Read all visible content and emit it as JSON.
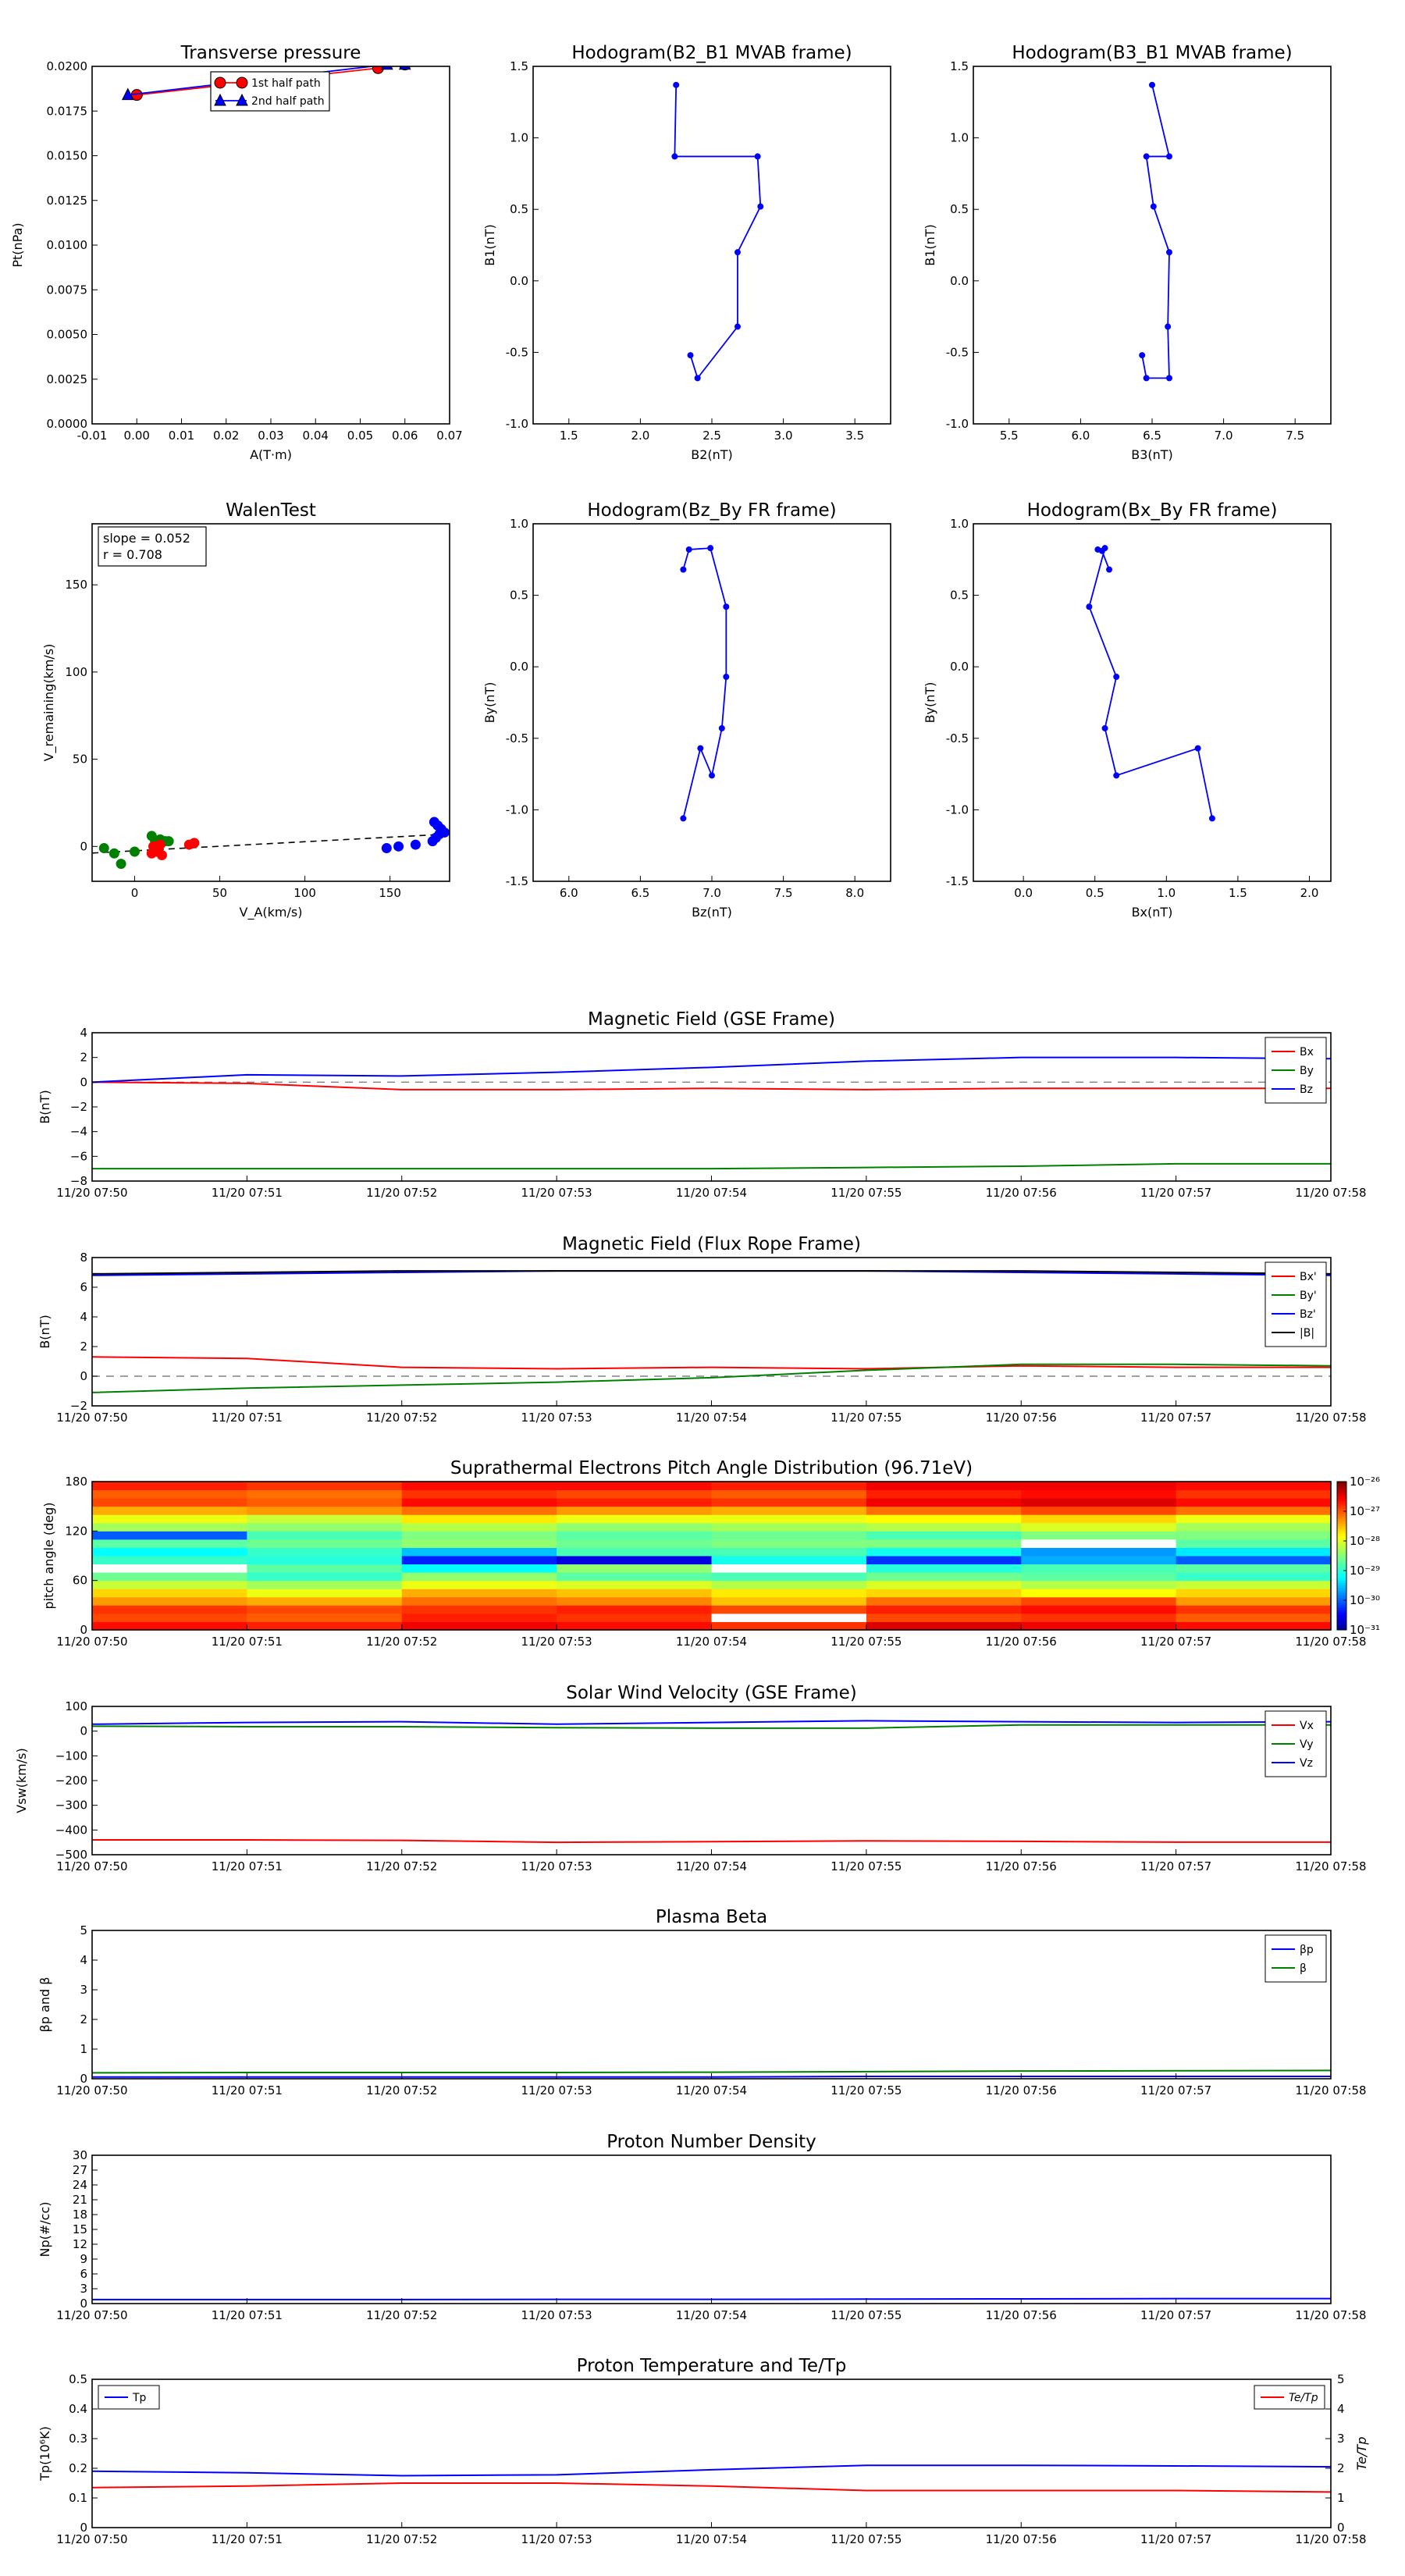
{
  "chart_data": [
    {
      "id": "tp",
      "type": "line",
      "title": "Transverse pressure",
      "xlabel": "A(T·m)",
      "ylabel": "Pt(nPa)",
      "xlim": [
        -0.01,
        0.07
      ],
      "ylim": [
        0,
        0.02
      ],
      "xticks": [
        "-0.01",
        "0.00",
        "0.01",
        "0.02",
        "0.03",
        "0.04",
        "0.05",
        "0.06",
        "0.07"
      ],
      "yticks": [
        "0.0000",
        "0.0025",
        "0.0050",
        "0.0075",
        "0.0100",
        "0.0125",
        "0.0150",
        "0.0175",
        "0.0200"
      ],
      "legend": "top-center",
      "series": [
        {
          "name": "1st half path",
          "color": "#ff0000",
          "marker": "circle",
          "x": [
            0.0,
            0.054,
            0.06
          ],
          "y": [
            0.0184,
            0.0199,
            0.0201
          ]
        },
        {
          "name": "2nd half path",
          "color": "#0000ff",
          "marker": "triangle",
          "x": [
            -0.002,
            0.056,
            0.06
          ],
          "y": [
            0.0184,
            0.0201,
            0.0201
          ]
        }
      ]
    },
    {
      "id": "h1",
      "type": "line",
      "title": "Hodogram(B2_B1 MVAB frame)",
      "xlabel": "B2(nT)",
      "ylabel": "B1(nT)",
      "xlim": [
        1.25,
        3.75
      ],
      "ylim": [
        -1.0,
        1.5
      ],
      "xticks": [
        "1.5",
        "2.0",
        "2.5",
        "3.0",
        "3.5"
      ],
      "yticks": [
        "-1.0",
        "-0.5",
        "0.0",
        "0.5",
        "1.0",
        "1.5"
      ],
      "series": [
        {
          "color": "#0000ff",
          "marker": "dot",
          "x": [
            2.25,
            2.24,
            2.82,
            2.84,
            2.68,
            2.68,
            2.4,
            2.35
          ],
          "y": [
            1.37,
            0.87,
            0.87,
            0.52,
            0.2,
            -0.32,
            -0.68,
            -0.52
          ]
        }
      ]
    },
    {
      "id": "h2",
      "type": "line",
      "title": "Hodogram(B3_B1 MVAB frame)",
      "xlabel": "B3(nT)",
      "ylabel": "B1(nT)",
      "xlim": [
        5.25,
        7.75
      ],
      "ylim": [
        -1.0,
        1.5
      ],
      "xticks": [
        "5.5",
        "6.0",
        "6.5",
        "7.0",
        "7.5"
      ],
      "yticks": [
        "-1.0",
        "-0.5",
        "0.0",
        "0.5",
        "1.0",
        "1.5"
      ],
      "series": [
        {
          "color": "#0000ff",
          "marker": "dot",
          "x": [
            6.5,
            6.62,
            6.46,
            6.51,
            6.62,
            6.61,
            6.62,
            6.46,
            6.43
          ],
          "y": [
            1.37,
            0.87,
            0.87,
            0.52,
            0.2,
            -0.32,
            -0.68,
            -0.68,
            -0.52
          ]
        }
      ]
    },
    {
      "id": "walen",
      "type": "scatter",
      "title": "WalenTest",
      "xlabel": "V_A(km/s)",
      "ylabel": "V_remaining(km/s)",
      "xlim": [
        -25,
        185
      ],
      "ylim": [
        -20,
        185
      ],
      "xticks": [
        "0",
        "50",
        "100",
        "150"
      ],
      "xtickvals": [
        0,
        50,
        100,
        150
      ],
      "yticks": [
        "0",
        "50",
        "100",
        "150"
      ],
      "ytickvals": [
        0,
        50,
        100,
        150
      ],
      "annotation": [
        "slope = 0.052",
        "r = 0.708"
      ],
      "fit_line": {
        "slope": 0.052,
        "intercept": -2.5
      },
      "series": [
        {
          "color": "#008000",
          "x": [
            -28,
            -18,
            -12,
            -8,
            0,
            10,
            12,
            15,
            18,
            20
          ],
          "y": [
            -6,
            -1,
            -4,
            -10,
            -3,
            6,
            3,
            4,
            3,
            3
          ]
        },
        {
          "color": "#ff0000",
          "x": [
            10,
            12,
            14,
            13,
            11,
            15,
            16,
            32,
            35
          ],
          "y": [
            -4,
            -2,
            -1,
            -3,
            0,
            1,
            -5,
            1,
            2
          ]
        },
        {
          "color": "#0000ff",
          "x": [
            148,
            155,
            165,
            175,
            176,
            178,
            180,
            179,
            177,
            182
          ],
          "y": [
            -1,
            0,
            1,
            3,
            14,
            12,
            10,
            7,
            5,
            8
          ]
        }
      ]
    },
    {
      "id": "h3",
      "type": "line",
      "title": "Hodogram(Bz_By FR frame)",
      "xlabel": "Bz(nT)",
      "ylabel": "By(nT)",
      "xlim": [
        5.75,
        8.25
      ],
      "ylim": [
        -1.5,
        1.0
      ],
      "xticks": [
        "6.0",
        "6.5",
        "7.0",
        "7.5",
        "8.0"
      ],
      "yticks": [
        "-1.5",
        "-1.0",
        "-0.5",
        "0.0",
        "0.5",
        "1.0"
      ],
      "series": [
        {
          "color": "#0000ff",
          "marker": "dot",
          "x": [
            6.8,
            6.84,
            6.99,
            7.1,
            7.1,
            7.07,
            7.0,
            6.92,
            6.8
          ],
          "y": [
            0.68,
            0.82,
            0.83,
            0.42,
            -0.07,
            -0.43,
            -0.76,
            -0.57,
            -1.06
          ]
        }
      ]
    },
    {
      "id": "h4",
      "type": "line",
      "title": "Hodogram(Bx_By FR frame)",
      "xlabel": "Bx(nT)",
      "ylabel": "By(nT)",
      "xlim": [
        -0.35,
        2.15
      ],
      "ylim": [
        -1.5,
        1.0
      ],
      "xticks": [
        "0.0",
        "0.5",
        "1.0",
        "1.5",
        "2.0"
      ],
      "yticks": [
        "-1.5",
        "-1.0",
        "-0.5",
        "0.0",
        "0.5",
        "1.0"
      ],
      "series": [
        {
          "color": "#0000ff",
          "marker": "dot",
          "x": [
            0.6,
            0.55,
            0.52,
            0.57,
            0.46,
            0.65,
            0.57,
            0.65,
            1.22,
            1.32
          ],
          "y": [
            0.68,
            0.81,
            0.82,
            0.83,
            0.42,
            -0.07,
            -0.43,
            -0.76,
            -0.57,
            -1.06
          ]
        }
      ]
    },
    {
      "id": "ts1",
      "type": "line",
      "title": "Magnetic Field (GSE Frame)",
      "ylabel": "B(nT)",
      "ylim": [
        -8,
        4
      ],
      "yticks": [
        "−8",
        "−6",
        "−4",
        "−2",
        "0",
        "2",
        "4"
      ],
      "ytickvals": [
        -8,
        -6,
        -4,
        -2,
        0,
        2,
        4
      ],
      "zero_line": true,
      "legend": "top-right",
      "series": [
        {
          "name": "Bx",
          "color": "#ff0000",
          "values": [
            0.0,
            -0.1,
            -0.6,
            -0.6,
            -0.5,
            -0.6,
            -0.5,
            -0.5,
            -0.5
          ]
        },
        {
          "name": "By",
          "color": "#008000",
          "values": [
            -7.0,
            -7.0,
            -7.0,
            -7.0,
            -7.0,
            -6.9,
            -6.8,
            -6.6,
            -6.6
          ]
        },
        {
          "name": "Bz",
          "color": "#0000ff",
          "values": [
            0.0,
            0.6,
            0.5,
            0.8,
            1.2,
            1.7,
            2.0,
            2.0,
            1.9
          ]
        }
      ]
    },
    {
      "id": "ts2",
      "type": "line",
      "title": "Magnetic Field (Flux Rope Frame)",
      "ylabel": "B(nT)",
      "ylim": [
        -2,
        8
      ],
      "yticks": [
        "−2",
        "0",
        "2",
        "4",
        "6",
        "8"
      ],
      "ytickvals": [
        -2,
        0,
        2,
        4,
        6,
        8
      ],
      "zero_line": true,
      "legend": "top-right",
      "series": [
        {
          "name": "Bx'",
          "color": "#ff0000",
          "values": [
            1.3,
            1.2,
            0.6,
            0.5,
            0.6,
            0.5,
            0.7,
            0.6,
            0.6
          ]
        },
        {
          "name": "By'",
          "color": "#008000",
          "values": [
            -1.1,
            -0.8,
            -0.6,
            -0.4,
            -0.1,
            0.4,
            0.8,
            0.8,
            0.7
          ]
        },
        {
          "name": "Bz'",
          "color": "#0000ff",
          "values": [
            6.8,
            6.9,
            7.0,
            7.1,
            7.1,
            7.1,
            7.0,
            6.9,
            6.8
          ]
        },
        {
          "name": "|B|",
          "color": "#000000",
          "values": [
            6.9,
            7.0,
            7.1,
            7.1,
            7.1,
            7.1,
            7.1,
            7.0,
            6.9
          ]
        }
      ]
    },
    {
      "id": "ts3",
      "type": "heatmap",
      "title": "Suprathermal Electrons Pitch Angle Distribution (96.71eV)",
      "ylabel": "pitch angle (deg)",
      "ylim": [
        0,
        180
      ],
      "yticks": [
        "0",
        "60",
        "120",
        "180"
      ],
      "ytickvals": [
        0,
        60,
        120,
        180
      ],
      "colorbar": {
        "ticks": [
          "10⁻³¹",
          "10⁻³⁰",
          "10⁻²⁹",
          "10⁻²⁸",
          "10⁻²⁷",
          "10⁻²⁶"
        ],
        "min_exp": -31,
        "max_exp": -26
      },
      "note": "rows are pitch-angle bins from 0 to 180 deg; columns are minute bins; values are log10 of the colourbar quantity",
      "matrix": [
        [
          -26.6,
          -26.7,
          -26.5,
          -26.6,
          -26.8,
          -26.4,
          -26.5,
          -26.6
        ],
        [
          -26.9,
          -27.0,
          -26.7,
          -26.8,
          -31.5,
          -26.9,
          -26.8,
          -27.0
        ],
        [
          -26.8,
          -26.9,
          -26.8,
          -26.7,
          -26.9,
          -26.7,
          -26.6,
          -26.8
        ],
        [
          -27.3,
          -27.4,
          -27.1,
          -27.2,
          -27.5,
          -27.1,
          -26.9,
          -27.3
        ],
        [
          -27.6,
          -27.9,
          -27.4,
          -27.5,
          -27.7,
          -27.6,
          -27.8,
          -27.6
        ],
        [
          -28.1,
          -28.3,
          -27.9,
          -28.0,
          -28.2,
          -28.0,
          -28.2,
          -28.1
        ],
        [
          -28.6,
          -28.9,
          -28.4,
          -28.7,
          -28.8,
          -28.6,
          -28.7,
          -28.9
        ],
        [
          -31.5,
          -28.7,
          -29.2,
          -28.4,
          -31.5,
          -29.0,
          -28.8,
          -28.7
        ],
        [
          -28.9,
          -29.0,
          -30.3,
          -30.6,
          -29.1,
          -30.2,
          -29.6,
          -30.0
        ],
        [
          -29.2,
          -28.9,
          -29.5,
          -28.8,
          -28.8,
          -29.1,
          -29.7,
          -29.3
        ],
        [
          -28.7,
          -28.6,
          -28.4,
          -28.6,
          -28.5,
          -28.5,
          -31.5,
          -28.7
        ],
        [
          -30.0,
          -28.8,
          -28.5,
          -28.7,
          -28.6,
          -28.8,
          -28.5,
          -28.5
        ],
        [
          -28.3,
          -28.4,
          -28.2,
          -28.4,
          -28.3,
          -28.2,
          -28.0,
          -28.3
        ],
        [
          -27.9,
          -28.1,
          -27.7,
          -27.9,
          -27.9,
          -27.8,
          -27.6,
          -27.9
        ],
        [
          -27.4,
          -27.3,
          -27.1,
          -27.3,
          -27.4,
          -27.1,
          -26.9,
          -27.1
        ],
        [
          -26.9,
          -27.0,
          -26.6,
          -26.7,
          -26.8,
          -26.5,
          -26.4,
          -26.6
        ],
        [
          -27.0,
          -27.1,
          -26.8,
          -26.9,
          -27.0,
          -26.7,
          -26.6,
          -26.8
        ],
        [
          -26.7,
          -26.8,
          -26.6,
          -26.6,
          -26.7,
          -26.5,
          -26.5,
          -26.6
        ]
      ]
    },
    {
      "id": "ts4",
      "type": "line",
      "title": "Solar Wind Velocity (GSE Frame)",
      "ylabel": "Vsw(km/s)",
      "ylim": [
        -500,
        100
      ],
      "yticks": [
        "−500",
        "−400",
        "−300",
        "−200",
        "−100",
        "0",
        "100"
      ],
      "ytickvals": [
        -500,
        -400,
        -300,
        -200,
        -100,
        0,
        100
      ],
      "legend": "top-right",
      "series": [
        {
          "name": "Vx",
          "color": "#ff0000",
          "values": [
            -440,
            -440,
            -442,
            -450,
            -447,
            -444,
            -446,
            -449,
            -449
          ]
        },
        {
          "name": "Vy",
          "color": "#008000",
          "values": [
            20,
            18,
            18,
            14,
            12,
            12,
            25,
            25,
            25
          ]
        },
        {
          "name": "Vz",
          "color": "#0000ff",
          "values": [
            28,
            35,
            38,
            28,
            35,
            42,
            38,
            35,
            38
          ]
        }
      ]
    },
    {
      "id": "ts5",
      "type": "line",
      "title": "Plasma Beta",
      "ylabel": "βp and β",
      "ylim": [
        0,
        5
      ],
      "yticks": [
        "0",
        "1",
        "2",
        "3",
        "4",
        "5"
      ],
      "ytickvals": [
        0,
        1,
        2,
        3,
        4,
        5
      ],
      "legend": "top-right",
      "series": [
        {
          "name": "βp",
          "color": "#0000ff",
          "values": [
            0.06,
            0.06,
            0.06,
            0.06,
            0.06,
            0.08,
            0.08,
            0.08,
            0.08
          ]
        },
        {
          "name": "β",
          "color": "#008000",
          "values": [
            0.2,
            0.21,
            0.21,
            0.21,
            0.22,
            0.24,
            0.26,
            0.27,
            0.28
          ]
        }
      ]
    },
    {
      "id": "ts6",
      "type": "line",
      "title": "Proton Number Density",
      "ylabel": "Np(#/cc)",
      "ylim": [
        0,
        30
      ],
      "yticks": [
        "0",
        "3",
        "6",
        "9",
        "12",
        "15",
        "18",
        "21",
        "24",
        "27",
        "30"
      ],
      "ytickvals": [
        0,
        3,
        6,
        9,
        12,
        15,
        18,
        21,
        24,
        27,
        30
      ],
      "series": [
        {
          "color": "#0000ff",
          "values": [
            0.8,
            0.8,
            0.8,
            0.85,
            0.85,
            0.9,
            0.95,
            1.0,
            1.0
          ]
        }
      ]
    },
    {
      "id": "ts7",
      "type": "line",
      "title": "Proton Temperature and Te/Tp",
      "ylabel": "Tp(10⁶K)",
      "ylim": [
        0,
        0.5
      ],
      "yticks": [
        "0",
        "0.1",
        "0.2",
        "0.3",
        "0.4",
        "0.5"
      ],
      "ytickvals": [
        0,
        0.1,
        0.2,
        0.3,
        0.4,
        0.5
      ],
      "y2label": "Te/Tp",
      "y2lim": [
        0,
        5
      ],
      "y2ticks": [
        "0",
        "1",
        "2",
        "3",
        "4",
        "5"
      ],
      "y2tickvals": [
        0,
        1,
        2,
        3,
        4,
        5
      ],
      "legend": "top-left / top-right",
      "series": [
        {
          "name": "Tp",
          "color": "#0000ff",
          "axis": "left",
          "values": [
            0.19,
            0.185,
            0.175,
            0.178,
            0.195,
            0.21,
            0.21,
            0.208,
            0.205
          ]
        },
        {
          "name": "Te/Tp",
          "color": "#ff0000",
          "axis": "right",
          "values": [
            1.35,
            1.4,
            1.5,
            1.5,
            1.4,
            1.25,
            1.25,
            1.25,
            1.2
          ]
        }
      ]
    }
  ],
  "time_axis": {
    "labels": [
      "11/20 07:50",
      "11/20 07:51",
      "11/20 07:52",
      "11/20 07:53",
      "11/20 07:54",
      "11/20 07:55",
      "11/20 07:56",
      "11/20 07:57",
      "11/20 07:58"
    ]
  },
  "colors": {
    "axis": "#000000",
    "grid_dash": "#808080"
  }
}
